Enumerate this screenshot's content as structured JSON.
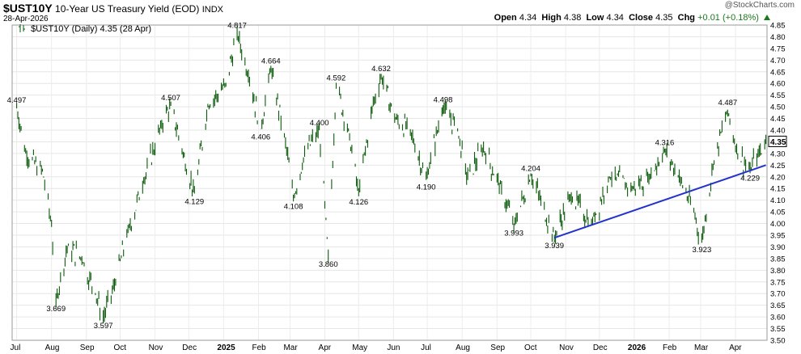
{
  "header": {
    "symbol": "$UST10Y",
    "name": "10-Year US Treasury Yield (EOD)",
    "exchange": "INDX",
    "date": "28-Apr-2026",
    "watermark": "@StockCharts.com",
    "open_label": "Open",
    "open": "4.34",
    "high_label": "High",
    "high": "4.38",
    "low_label": "Low",
    "low": "4.34",
    "close_label": "Close",
    "close": "4.35",
    "chg_label": "Chg",
    "chg": "+0.01 (+0.18%)"
  },
  "legend": {
    "text": "$UST10Y (Daily) 4.35 (28 Apr)"
  },
  "chart_data": {
    "type": "line",
    "title": "$UST10Y 10-Year US Treasury Yield (EOD) INDX",
    "ylim": [
      3.5,
      4.85
    ],
    "y_ticks": [
      "4.85",
      "4.80",
      "4.75",
      "4.70",
      "4.65",
      "4.60",
      "4.55",
      "4.50",
      "4.45",
      "4.40",
      "4.35",
      "4.30",
      "4.25",
      "4.20",
      "4.15",
      "4.10",
      "4.05",
      "4.00",
      "3.95",
      "3.90",
      "3.85",
      "3.80",
      "3.75",
      "3.70",
      "3.65",
      "3.60",
      "3.55",
      "3.50"
    ],
    "x_ticks": [
      "Jul",
      "Aug",
      "Sep",
      "Oct",
      "Nov",
      "Dec",
      "2025",
      "Feb",
      "Mar",
      "Apr",
      "May",
      "Jun",
      "Jul",
      "Aug",
      "Sep",
      "Oct",
      "Nov",
      "Dec",
      "2026",
      "Feb",
      "Mar",
      "Apr"
    ],
    "bold_x_ticks": [
      "2025",
      "2026"
    ],
    "current_value": "4.35",
    "series": [
      {
        "name": "$UST10Y (Daily)",
        "color": "#0a5a0a",
        "points": [
          [
            "2024-07-01",
            4.497
          ],
          [
            "2024-07-10",
            4.28
          ],
          [
            "2024-07-24",
            4.23
          ],
          [
            "2024-08-01",
            3.99
          ],
          [
            "2024-08-05",
            3.669
          ],
          [
            "2024-08-15",
            3.9
          ],
          [
            "2024-08-28",
            3.85
          ],
          [
            "2024-09-09",
            3.7
          ],
          [
            "2024-09-16",
            3.597
          ],
          [
            "2024-09-27",
            3.75
          ],
          [
            "2024-10-07",
            3.95
          ],
          [
            "2024-10-22",
            4.18
          ],
          [
            "2024-11-06",
            4.42
          ],
          [
            "2024-11-15",
            4.507
          ],
          [
            "2024-11-26",
            4.3
          ],
          [
            "2024-12-06",
            4.129
          ],
          [
            "2024-12-18",
            4.5
          ],
          [
            "2025-01-03",
            4.6
          ],
          [
            "2025-01-13",
            4.817
          ],
          [
            "2025-01-24",
            4.62
          ],
          [
            "2025-02-03",
            4.406
          ],
          [
            "2025-02-12",
            4.664
          ],
          [
            "2025-02-25",
            4.35
          ],
          [
            "2025-03-04",
            4.108
          ],
          [
            "2025-03-14",
            4.3
          ],
          [
            "2025-03-27",
            4.4
          ],
          [
            "2025-04-04",
            3.86
          ],
          [
            "2025-04-11",
            4.592
          ],
          [
            "2025-04-22",
            4.4
          ],
          [
            "2025-05-01",
            4.126
          ],
          [
            "2025-05-13",
            4.5
          ],
          [
            "2025-05-21",
            4.632
          ],
          [
            "2025-06-02",
            4.45
          ],
          [
            "2025-06-16",
            4.4
          ],
          [
            "2025-06-30",
            4.19
          ],
          [
            "2025-07-15",
            4.498
          ],
          [
            "2025-07-28",
            4.4
          ],
          [
            "2025-08-05",
            4.2
          ],
          [
            "2025-08-20",
            4.32
          ],
          [
            "2025-09-05",
            4.15
          ],
          [
            "2025-09-16",
            3.993
          ],
          [
            "2025-10-01",
            4.204
          ],
          [
            "2025-10-10",
            4.1
          ],
          [
            "2025-10-22",
            3.939
          ],
          [
            "2025-11-05",
            4.12
          ],
          [
            "2025-11-24",
            4.0
          ],
          [
            "2025-12-10",
            4.2
          ],
          [
            "2025-12-31",
            4.15
          ],
          [
            "2026-01-14",
            4.2
          ],
          [
            "2026-01-28",
            4.316
          ],
          [
            "2026-02-10",
            4.2
          ],
          [
            "2026-02-23",
            4.05
          ],
          [
            "2026-03-02",
            3.923
          ],
          [
            "2026-03-12",
            4.25
          ],
          [
            "2026-03-25",
            4.487
          ],
          [
            "2026-04-03",
            4.3
          ],
          [
            "2026-04-14",
            4.229
          ],
          [
            "2026-04-21",
            4.3
          ],
          [
            "2026-04-28",
            4.35
          ]
        ]
      }
    ],
    "trendline": {
      "color": "#2233cc",
      "from": [
        "2025-10-22",
        3.939
      ],
      "to": [
        "2026-04-28",
        4.25
      ]
    },
    "annotations": [
      {
        "text": "4.497",
        "date": "2024-07-01",
        "value": 4.497,
        "pos": "above"
      },
      {
        "text": "3.669",
        "date": "2024-08-05",
        "value": 3.669,
        "pos": "below"
      },
      {
        "text": "3.597",
        "date": "2024-09-16",
        "value": 3.597,
        "pos": "below"
      },
      {
        "text": "4.507",
        "date": "2024-11-15",
        "value": 4.507,
        "pos": "above"
      },
      {
        "text": "4.129",
        "date": "2024-12-06",
        "value": 4.129,
        "pos": "below"
      },
      {
        "text": "4.817",
        "date": "2025-01-13",
        "value": 4.817,
        "pos": "above"
      },
      {
        "text": "4.406",
        "date": "2025-02-03",
        "value": 4.406,
        "pos": "below"
      },
      {
        "text": "4.664",
        "date": "2025-02-12",
        "value": 4.664,
        "pos": "above"
      },
      {
        "text": "4.108",
        "date": "2025-03-04",
        "value": 4.108,
        "pos": "below"
      },
      {
        "text": "4.400",
        "date": "2025-03-27",
        "value": 4.4,
        "pos": "above"
      },
      {
        "text": "3.860",
        "date": "2025-04-04",
        "value": 3.86,
        "pos": "below"
      },
      {
        "text": "4.592",
        "date": "2025-04-11",
        "value": 4.592,
        "pos": "above"
      },
      {
        "text": "4.126",
        "date": "2025-05-01",
        "value": 4.126,
        "pos": "below"
      },
      {
        "text": "4.632",
        "date": "2025-05-21",
        "value": 4.632,
        "pos": "above"
      },
      {
        "text": "4.190",
        "date": "2025-06-30",
        "value": 4.19,
        "pos": "below"
      },
      {
        "text": "4.498",
        "date": "2025-07-15",
        "value": 4.498,
        "pos": "above"
      },
      {
        "text": "3.993",
        "date": "2025-09-16",
        "value": 3.993,
        "pos": "below"
      },
      {
        "text": "4.204",
        "date": "2025-10-01",
        "value": 4.204,
        "pos": "above"
      },
      {
        "text": "3.939",
        "date": "2025-10-22",
        "value": 3.939,
        "pos": "below"
      },
      {
        "text": "4.316",
        "date": "2026-01-28",
        "value": 4.316,
        "pos": "above"
      },
      {
        "text": "3.923",
        "date": "2026-03-02",
        "value": 3.923,
        "pos": "below"
      },
      {
        "text": "4.487",
        "date": "2026-03-25",
        "value": 4.487,
        "pos": "above"
      },
      {
        "text": "4.229",
        "date": "2026-04-14",
        "value": 4.229,
        "pos": "below"
      }
    ],
    "grid": true,
    "legend_position": "top-left"
  }
}
